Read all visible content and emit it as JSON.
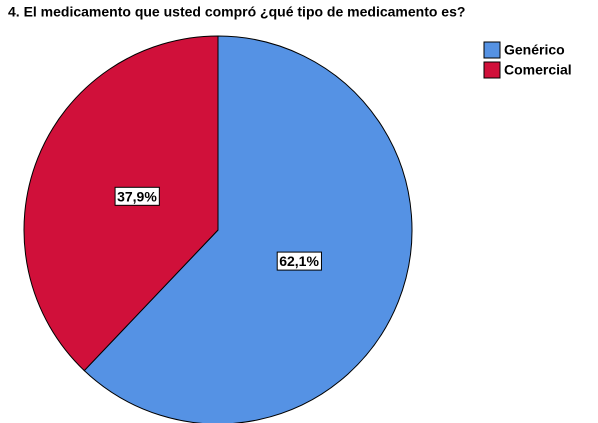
{
  "chart_data": {
    "type": "pie",
    "title": "4. El medicamento que usted compró ¿qué tipo de medicamento es?",
    "categories": [
      "Genérico",
      "Comercial"
    ],
    "values": [
      62.1,
      37.9
    ],
    "value_labels": [
      "62,1%",
      "37,9%"
    ],
    "colors": [
      "#5592e4",
      "#d0103a"
    ],
    "legend": "top-right"
  }
}
